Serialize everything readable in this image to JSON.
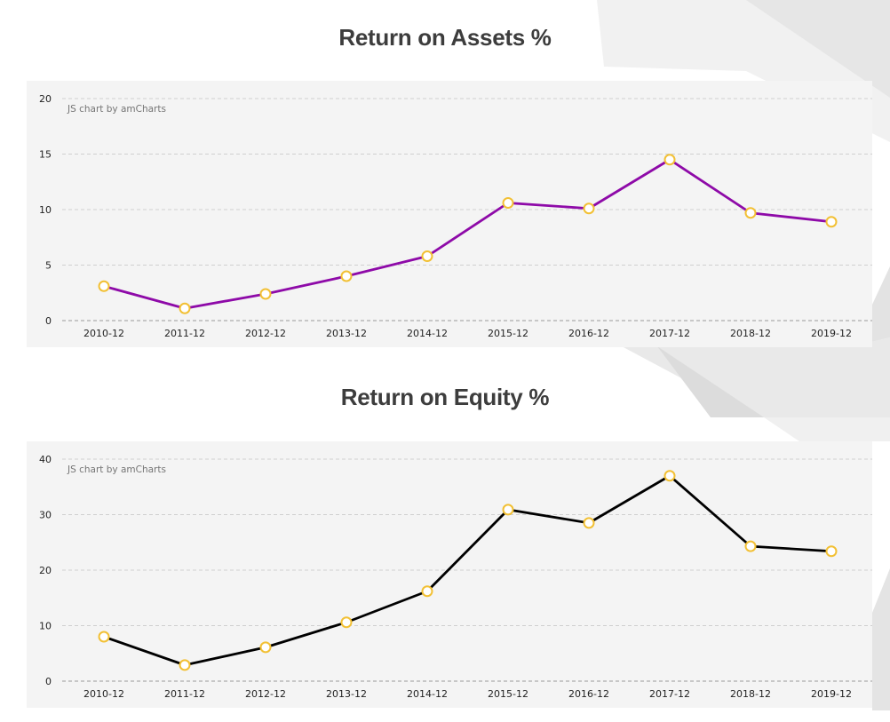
{
  "charts": [
    {
      "title": "Return on Assets %",
      "credit": "JS chart by amCharts",
      "chart_data": {
        "type": "line",
        "title": "Return on Assets %",
        "categories": [
          "2010-12",
          "2011-12",
          "2012-12",
          "2013-12",
          "2014-12",
          "2015-12",
          "2016-12",
          "2017-12",
          "2018-12",
          "2019-12"
        ],
        "series": [
          {
            "values": [
              3.1,
              1.1,
              2.4,
              4.0,
              5.8,
              10.6,
              10.1,
              14.5,
              9.7,
              8.9
            ]
          }
        ],
        "ylim": [
          0,
          20
        ],
        "yticks": [
          0,
          5,
          10,
          15,
          20
        ],
        "grid": true,
        "line_color": "#8e0aa8",
        "marker_stroke": "#f2c034",
        "marker_fill": "#ffffff"
      }
    },
    {
      "title": "Return on Equity %",
      "credit": "JS chart by amCharts",
      "chart_data": {
        "type": "line",
        "title": "Return on Equity %",
        "categories": [
          "2010-12",
          "2011-12",
          "2012-12",
          "2013-12",
          "2014-12",
          "2015-12",
          "2016-12",
          "2017-12",
          "2018-12",
          "2019-12"
        ],
        "series": [
          {
            "values": [
              8.0,
              2.9,
              6.1,
              10.6,
              16.2,
              30.9,
              28.5,
              37.0,
              24.3,
              23.4
            ]
          }
        ],
        "ylim": [
          0,
          40
        ],
        "yticks": [
          0,
          10,
          20,
          30,
          40
        ],
        "grid": true,
        "line_color": "#000000",
        "marker_stroke": "#f2c034",
        "marker_fill": "#ffffff"
      }
    }
  ]
}
